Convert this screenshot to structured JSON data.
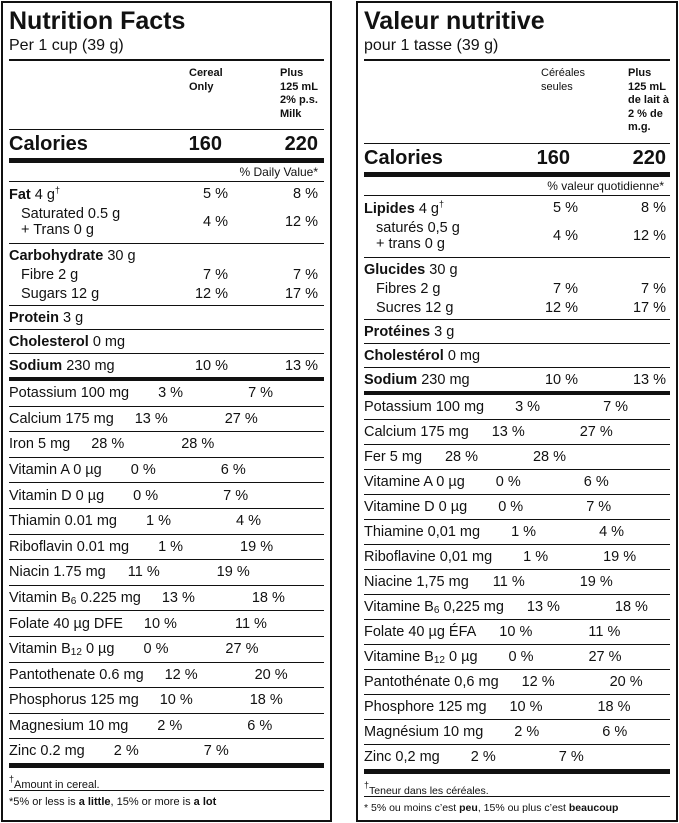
{
  "english": {
    "title": "Nutrition Facts",
    "serving": "Per 1 cup (39 g)",
    "col1": [
      "Cereal",
      "Only"
    ],
    "col2": [
      "Plus",
      "125 mL",
      "2% p.s.",
      "Milk"
    ],
    "calories": {
      "label": "Calories",
      "v1": "160",
      "v2": "220"
    },
    "dv": "% Daily Value*",
    "top": [
      [
        {
          "name": "Fat",
          "bold": true,
          "amount": "4 g",
          "sup": "†",
          "v1": "5 %",
          "v2": "8 %"
        },
        {
          "name": "Saturated 0.5 g",
          "name2": "+ Trans 0 g",
          "indent": true,
          "v1": "4 %",
          "v2": "12 %"
        }
      ],
      [
        {
          "name": "Carbohydrate",
          "bold": true,
          "amount": "30 g"
        },
        {
          "name": "Fibre 2 g",
          "indent": true,
          "v1": "7 %",
          "v2": "7 %"
        },
        {
          "name": "Sugars 12 g",
          "indent": true,
          "v1": "12 %",
          "v2": "17 %"
        }
      ],
      [
        {
          "name": "Protein",
          "bold": true,
          "amount": "3 g"
        }
      ],
      [
        {
          "name": "Cholesterol",
          "bold": true,
          "amount": "0 mg"
        }
      ],
      [
        {
          "name": "Sodium",
          "bold": true,
          "amount": "230 mg",
          "v1": "10 %",
          "v2": "13 %"
        }
      ]
    ],
    "nutrients": [
      {
        "name": "Potassium 100 mg",
        "v1": "3 %",
        "v2": "7 %"
      },
      {
        "name": "Calcium 175 mg",
        "v1": "13 %",
        "v2": "27 %"
      },
      {
        "name": "Iron 5 mg",
        "v1": "28 %",
        "v2": "28 %"
      },
      {
        "name": "Vitamin A 0 µg",
        "v1": "0 %",
        "v2": "6 %"
      },
      {
        "name": "Vitamin D 0 µg",
        "v1": "0 %",
        "v2": "7 %"
      },
      {
        "name": "Thiamin 0.01 mg",
        "v1": "1 %",
        "v2": "4 %"
      },
      {
        "name": "Riboflavin 0.01 mg",
        "v1": "1 %",
        "v2": "19 %"
      },
      {
        "name": "Niacin 1.75 mg",
        "v1": "11 %",
        "v2": "19 %"
      },
      {
        "name": "Vitamin B",
        "sub": "6",
        "amount": "0.225 mg",
        "v1": "13 %",
        "v2": "18 %"
      },
      {
        "name": "Folate 40 µg DFE",
        "v1": "10 %",
        "v2": "11 %"
      },
      {
        "name": "Vitamin B",
        "sub": "12",
        "amount": "0 µg",
        "v1": "0 %",
        "v2": "27 %"
      },
      {
        "name": "Pantothenate 0.6 mg",
        "v1": "12 %",
        "v2": "20 %"
      },
      {
        "name": "Phosphorus 125 mg",
        "v1": "10 %",
        "v2": "18 %"
      },
      {
        "name": "Magnesium 10 mg",
        "v1": "2 %",
        "v2": "6 %"
      },
      {
        "name": "Zinc 0.2 mg",
        "v1": "2 %",
        "v2": "7 %"
      }
    ],
    "footnote1": {
      "mark": "†",
      "text": "Amount in cereal."
    },
    "footnote2": [
      {
        "text": "*5% or less is "
      },
      {
        "text": "a little",
        "bold": true
      },
      {
        "text": ", 15% or more is "
      },
      {
        "text": "a lot",
        "bold": true
      }
    ]
  },
  "french": {
    "title": "Valeur nutritive",
    "serving": "pour 1 tasse (39 g)",
    "col1": [
      "Céréales",
      "seules"
    ],
    "col2": [
      "Plus",
      "125 mL",
      "de lait à",
      "2 % de",
      "m.g."
    ],
    "calories": {
      "label": "Calories",
      "v1": "160",
      "v2": "220"
    },
    "dv": "% valeur quotidienne*",
    "top": [
      [
        {
          "name": "Lipides",
          "bold": true,
          "amount": "4 g",
          "sup": "†",
          "v1": "5 %",
          "v2": "8 %"
        },
        {
          "name": "saturés 0,5 g",
          "name2": "+ trans 0 g",
          "indent": true,
          "v1": "4 %",
          "v2": "12 %"
        }
      ],
      [
        {
          "name": "Glucides",
          "bold": true,
          "amount": "30 g"
        },
        {
          "name": "Fibres 2 g",
          "indent": true,
          "v1": "7 %",
          "v2": "7 %"
        },
        {
          "name": "Sucres 12 g",
          "indent": true,
          "v1": "12 %",
          "v2": "17 %"
        }
      ],
      [
        {
          "name": "Protéines",
          "bold": true,
          "amount": "3 g"
        }
      ],
      [
        {
          "name": "Cholestérol",
          "bold": true,
          "amount": "0 mg"
        }
      ],
      [
        {
          "name": "Sodium",
          "bold": true,
          "amount": "230 mg",
          "v1": "10 %",
          "v2": "13 %"
        }
      ]
    ],
    "nutrients": [
      {
        "name": "Potassium 100 mg",
        "v1": "3 %",
        "v2": "7 %"
      },
      {
        "name": "Calcium 175 mg",
        "v1": "13 %",
        "v2": "27 %"
      },
      {
        "name": "Fer 5 mg",
        "v1": "28 %",
        "v2": "28 %"
      },
      {
        "name": "Vitamine A 0 µg",
        "v1": "0 %",
        "v2": "6 %"
      },
      {
        "name": "Vitamine D 0 µg",
        "v1": "0 %",
        "v2": "7 %"
      },
      {
        "name": "Thiamine 0,01 mg",
        "v1": "1 %",
        "v2": "4 %"
      },
      {
        "name": "Riboflavine 0,01 mg",
        "v1": "1 %",
        "v2": "19 %"
      },
      {
        "name": "Niacine 1,75 mg",
        "v1": "11 %",
        "v2": "19 %"
      },
      {
        "name": "Vitamine B",
        "sub": "6",
        "amount": "0,225 mg",
        "v1": "13 %",
        "v2": "18 %"
      },
      {
        "name": "Folate 40 µg ÉFA",
        "v1": "10 %",
        "v2": "11 %"
      },
      {
        "name": "Vitamine B",
        "sub": "12",
        "amount": "0 µg",
        "v1": "0 %",
        "v2": "27 %"
      },
      {
        "name": "Pantothénate 0,6 mg",
        "v1": "12 %",
        "v2": "20 %"
      },
      {
        "name": "Phosphore 125 mg",
        "v1": "10 %",
        "v2": "18 %"
      },
      {
        "name": "Magnésium 10 mg",
        "v1": "2 %",
        "v2": "6 %"
      },
      {
        "name": "Zinc 0,2 mg",
        "v1": "2 %",
        "v2": "7 %"
      }
    ],
    "footnote1": {
      "mark": "†",
      "text": "Teneur dans les céréales."
    },
    "footnote2": [
      {
        "text": "* 5% ou moins c’est "
      },
      {
        "text": "peu",
        "bold": true
      },
      {
        "text": ", 15% ou plus c’est "
      },
      {
        "text": "beaucoup",
        "bold": true
      }
    ]
  }
}
